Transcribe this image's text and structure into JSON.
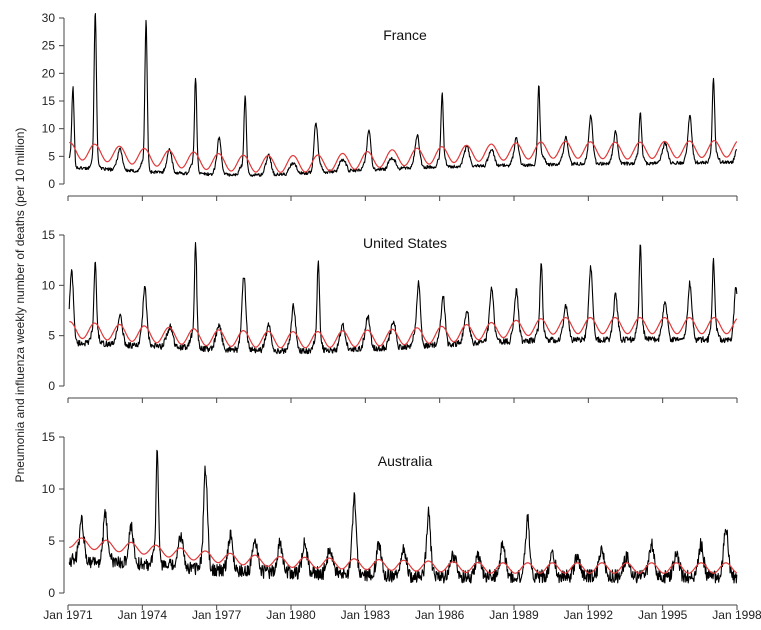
{
  "chart_data": {
    "type": "line",
    "ylabel": "Pneumonia and influenza weekly number of deaths (per 10 million)",
    "x_tick_labels": [
      "Jan 1971",
      "Jan 1974",
      "Jan 1977",
      "Jan 1980",
      "Jan 1983",
      "Jan 1986",
      "Jan 1989",
      "Jan 1992",
      "Jan 1995",
      "Jan 1998"
    ],
    "x_tick_years": [
      1971,
      1974,
      1977,
      1980,
      1983,
      1986,
      1989,
      1992,
      1995,
      1998
    ],
    "xlim": [
      1971,
      1998
    ],
    "colors": {
      "observed": "#000000",
      "baseline": "#e03a3a",
      "axis": "#444444"
    },
    "panels": [
      {
        "title": "France",
        "ylim": [
          0,
          30
        ],
        "yticks": [
          0,
          5,
          10,
          15,
          20,
          25,
          30
        ],
        "baseline_mean": [
          6.0,
          5.6,
          5.0,
          4.5,
          4.1,
          3.7,
          3.6,
          3.7,
          4.1,
          4.6,
          5.0,
          5.4,
          5.7,
          6.0,
          6.2,
          6.1,
          6.0,
          6.2,
          6.3,
          6.4
        ],
        "baseline_amplitude": 1.5,
        "trough_mean": [
          3.0,
          2.7,
          2.3,
          2.0,
          1.8,
          1.6,
          1.7,
          2.1,
          2.4,
          2.7,
          3.0,
          3.2,
          3.3,
          3.4,
          3.6,
          3.7,
          3.7,
          3.8,
          3.9,
          4.0
        ],
        "winter_peaks": [
          {
            "year": 1971.2,
            "value": 17.5
          },
          {
            "year": 1972.1,
            "value": 31
          },
          {
            "year": 1973.1,
            "value": 6
          },
          {
            "year": 1974.15,
            "value": 29.5
          },
          {
            "year": 1975.1,
            "value": 6
          },
          {
            "year": 1976.15,
            "value": 19
          },
          {
            "year": 1977.1,
            "value": 8
          },
          {
            "year": 1978.15,
            "value": 16
          },
          {
            "year": 1979.1,
            "value": 5
          },
          {
            "year": 1980.05,
            "value": 3
          },
          {
            "year": 1981.0,
            "value": 11
          },
          {
            "year": 1982.1,
            "value": 4
          },
          {
            "year": 1983.15,
            "value": 9.5
          },
          {
            "year": 1984.1,
            "value": 4
          },
          {
            "year": 1985.1,
            "value": 8.5
          },
          {
            "year": 1986.1,
            "value": 16
          },
          {
            "year": 1987.1,
            "value": 6.5
          },
          {
            "year": 1988.1,
            "value": 6
          },
          {
            "year": 1989.1,
            "value": 8
          },
          {
            "year": 1990.0,
            "value": 17.5
          },
          {
            "year": 1991.1,
            "value": 8
          },
          {
            "year": 1992.1,
            "value": 12
          },
          {
            "year": 1993.1,
            "value": 9
          },
          {
            "year": 1994.1,
            "value": 12.5
          },
          {
            "year": 1995.1,
            "value": 7
          },
          {
            "year": 1996.1,
            "value": 12
          },
          {
            "year": 1997.05,
            "value": 19
          },
          {
            "year": 1998.0,
            "value": 6
          }
        ]
      },
      {
        "title": "United States",
        "ylim": [
          0,
          15
        ],
        "yticks": [
          0,
          5,
          10,
          15
        ],
        "baseline_mean": [
          5.6,
          5.4,
          5.2,
          5.0,
          4.8,
          4.7,
          4.6,
          4.6,
          4.7,
          4.8,
          5.0,
          5.2,
          5.5,
          5.8,
          6.0,
          6.0,
          6.0,
          6.0,
          6.0,
          6.0
        ],
        "baseline_amplitude": 0.8,
        "trough_mean": [
          4.3,
          4.2,
          4.0,
          3.9,
          3.7,
          3.6,
          3.5,
          3.5,
          3.6,
          3.8,
          4.0,
          4.2,
          4.4,
          4.5,
          4.6,
          4.6,
          4.6,
          4.6,
          4.6,
          4.6
        ],
        "winter_peaks": [
          {
            "year": 1971.15,
            "value": 11.5
          },
          {
            "year": 1972.1,
            "value": 12.5
          },
          {
            "year": 1973.1,
            "value": 7
          },
          {
            "year": 1974.1,
            "value": 9.8
          },
          {
            "year": 1975.15,
            "value": 6
          },
          {
            "year": 1976.15,
            "value": 14.3
          },
          {
            "year": 1977.1,
            "value": 6
          },
          {
            "year": 1978.1,
            "value": 11
          },
          {
            "year": 1979.1,
            "value": 6
          },
          {
            "year": 1980.1,
            "value": 8
          },
          {
            "year": 1981.1,
            "value": 12.5
          },
          {
            "year": 1982.1,
            "value": 6
          },
          {
            "year": 1983.1,
            "value": 7
          },
          {
            "year": 1984.15,
            "value": 6.5
          },
          {
            "year": 1985.15,
            "value": 10.3
          },
          {
            "year": 1986.15,
            "value": 9
          },
          {
            "year": 1987.1,
            "value": 7.5
          },
          {
            "year": 1988.1,
            "value": 9.8
          },
          {
            "year": 1989.1,
            "value": 9.5
          },
          {
            "year": 1990.1,
            "value": 12.5
          },
          {
            "year": 1991.1,
            "value": 8
          },
          {
            "year": 1992.1,
            "value": 11.8
          },
          {
            "year": 1993.1,
            "value": 9
          },
          {
            "year": 1994.1,
            "value": 14.1
          },
          {
            "year": 1995.1,
            "value": 8.5
          },
          {
            "year": 1996.1,
            "value": 10.2
          },
          {
            "year": 1997.05,
            "value": 12.5
          },
          {
            "year": 1997.95,
            "value": 10.3
          }
        ]
      },
      {
        "title": "Australia",
        "ylim": [
          0,
          15
        ],
        "yticks": [
          0,
          5,
          10,
          15
        ],
        "baseline_mean": [
          4.9,
          4.6,
          4.3,
          3.9,
          3.5,
          3.2,
          3.0,
          2.9,
          2.8,
          2.7,
          2.6,
          2.5,
          2.4,
          2.4,
          2.4,
          2.4,
          2.4,
          2.4,
          2.4,
          2.4
        ],
        "baseline_amplitude": 0.5,
        "trough_mean": [
          3.2,
          3.0,
          2.8,
          2.6,
          2.3,
          2.1,
          2.0,
          1.9,
          1.8,
          1.7,
          1.6,
          1.6,
          1.6,
          1.6,
          1.6,
          1.6,
          1.6,
          1.6,
          1.6,
          1.6
        ],
        "winter_peaks": [
          {
            "year": 1971.55,
            "value": 7
          },
          {
            "year": 1972.5,
            "value": 7.5
          },
          {
            "year": 1973.55,
            "value": 6.5
          },
          {
            "year": 1974.6,
            "value": 14.2
          },
          {
            "year": 1975.55,
            "value": 5.5
          },
          {
            "year": 1976.55,
            "value": 12
          },
          {
            "year": 1977.55,
            "value": 5.5
          },
          {
            "year": 1978.55,
            "value": 5.2
          },
          {
            "year": 1979.55,
            "value": 4.8
          },
          {
            "year": 1980.55,
            "value": 4.8
          },
          {
            "year": 1981.55,
            "value": 4
          },
          {
            "year": 1982.55,
            "value": 9.1
          },
          {
            "year": 1983.55,
            "value": 4.6
          },
          {
            "year": 1984.55,
            "value": 4.2
          },
          {
            "year": 1985.55,
            "value": 7.7
          },
          {
            "year": 1986.55,
            "value": 3.6
          },
          {
            "year": 1987.55,
            "value": 3.5
          },
          {
            "year": 1988.55,
            "value": 4.8
          },
          {
            "year": 1989.55,
            "value": 7.2
          },
          {
            "year": 1990.55,
            "value": 3.5
          },
          {
            "year": 1991.55,
            "value": 3.3
          },
          {
            "year": 1992.55,
            "value": 4.3
          },
          {
            "year": 1993.55,
            "value": 3.5
          },
          {
            "year": 1994.55,
            "value": 4.7
          },
          {
            "year": 1995.55,
            "value": 3.5
          },
          {
            "year": 1996.55,
            "value": 4.7
          },
          {
            "year": 1997.55,
            "value": 6.6
          }
        ]
      }
    ]
  }
}
